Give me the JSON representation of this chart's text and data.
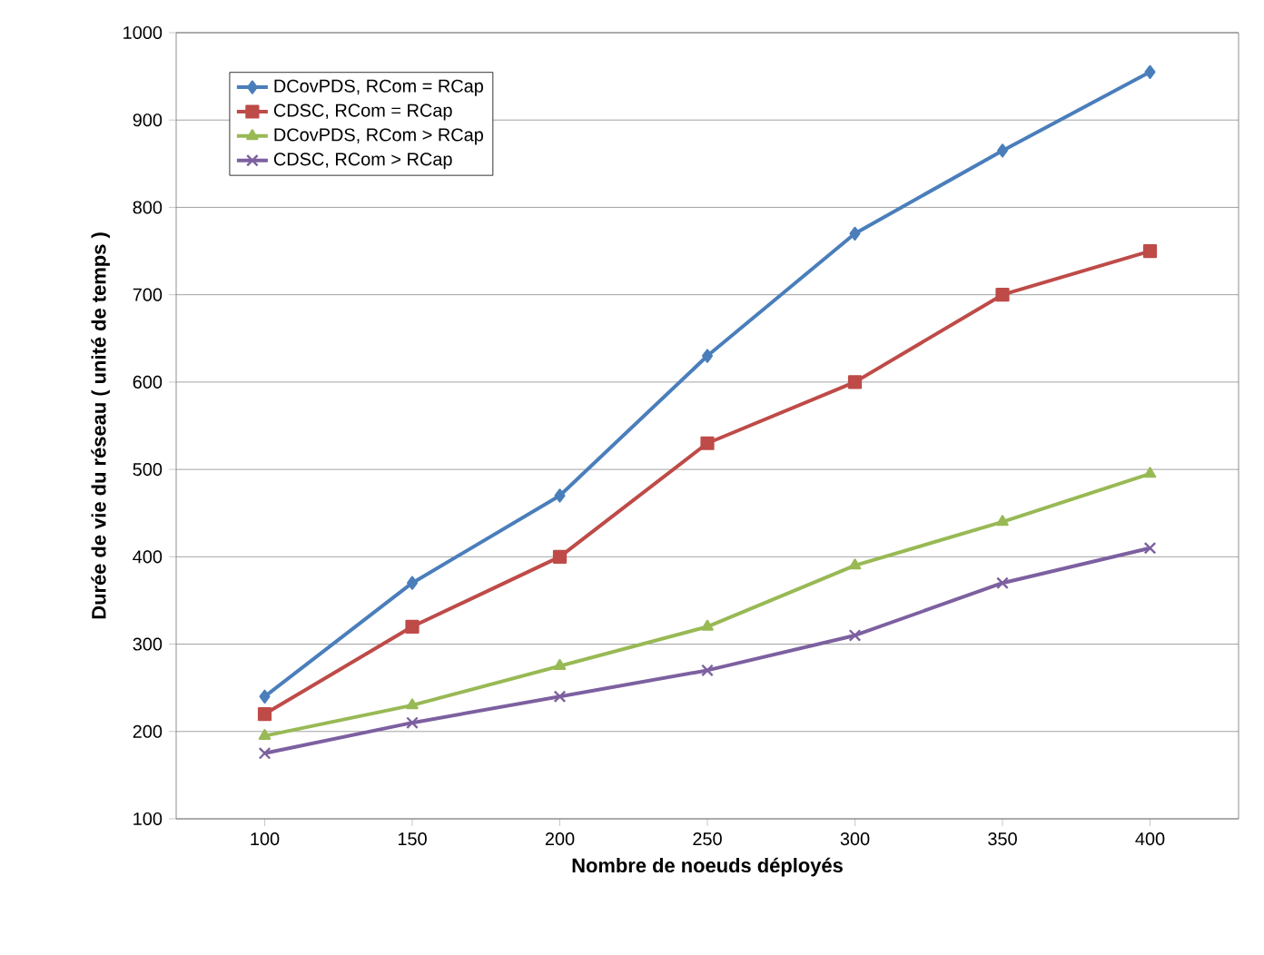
{
  "chart_data": {
    "type": "line",
    "xlabel": "Nombre de noeuds déployés",
    "ylabel": "Durée de vie du réseau ( unité de temps )",
    "categories": [
      "100",
      "150",
      "200",
      "250",
      "300",
      "350",
      "400"
    ],
    "ylim": [
      100,
      1000
    ],
    "yticks": [
      100,
      200,
      300,
      400,
      500,
      600,
      700,
      800,
      900,
      1000
    ],
    "grid": "y",
    "legend": "top left",
    "line_style": "solid",
    "series": [
      {
        "name": "DCovPDS, RCom = RCap",
        "color": "#4a7ebb",
        "marker": "diamond",
        "values": [
          240,
          370,
          470,
          630,
          770,
          865,
          955
        ]
      },
      {
        "name": "CDSC, RCom = RCap",
        "color": "#be4b48",
        "marker": "square",
        "values": [
          220,
          320,
          400,
          530,
          600,
          700,
          750
        ]
      },
      {
        "name": "DCovPDS, RCom > RCap",
        "color": "#98b954",
        "marker": "triangle",
        "values": [
          195,
          230,
          275,
          320,
          390,
          440,
          495
        ]
      },
      {
        "name": "CDSC, RCom > RCap",
        "color": "#7d60a0",
        "marker": "cross",
        "values": [
          175,
          210,
          240,
          270,
          310,
          370,
          410
        ]
      }
    ]
  }
}
